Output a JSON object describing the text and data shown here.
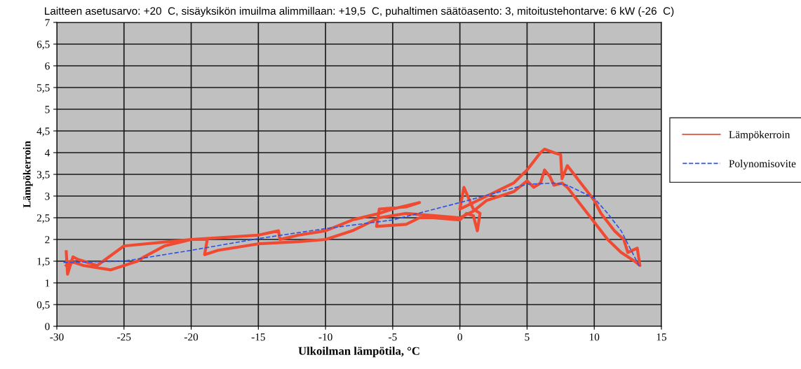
{
  "chart_data": {
    "type": "line",
    "title": "Laitteen asetusarvo: +20  C, sisäyksikön imuilma alimmillaan: +19,5  C, puhaltimen säätöasento: 3, mitoitustehontarve: 6 kW (-26  C)",
    "xlabel": "Ulkoilman lämpötila, °C",
    "ylabel": "Lämpökerroin",
    "xlim": [
      -30,
      15
    ],
    "xticks": [
      -30,
      -25,
      -20,
      -15,
      -10,
      -5,
      0,
      5,
      10,
      15
    ],
    "ylim": [
      0,
      7
    ],
    "yticks": [
      0,
      {
        "value": 0.5,
        "label": "0,5"
      },
      1,
      {
        "value": 1.5,
        "label": "1,5"
      },
      2,
      {
        "value": 2.5,
        "label": "2,5"
      },
      3,
      {
        "value": 3.5,
        "label": "3,5"
      },
      4,
      {
        "value": 4.5,
        "label": "4,5"
      },
      5,
      {
        "value": 5.5,
        "label": "5,5"
      },
      6,
      {
        "value": 6.5,
        "label": "6,5"
      },
      7
    ],
    "grid": true,
    "legend": "right",
    "series": [
      {
        "name": "Lämpökerroin",
        "color": "#f04a32",
        "line_style": "solid",
        "x": [
          -29.3,
          -29.2,
          -28.8,
          -28.5,
          -27,
          -25,
          -20,
          -15,
          -13.5,
          -13.4,
          -12,
          -10,
          -8,
          -6,
          -5,
          -3,
          -4,
          -6,
          -6.2,
          -4,
          -3,
          -2,
          0,
          0.5,
          1,
          1.3,
          1.5,
          1,
          0.3,
          0,
          1,
          2,
          4,
          5,
          6,
          6.3,
          7,
          7.5,
          7.6,
          8,
          9,
          10,
          10.5,
          11.5,
          12.2,
          12.5,
          13.2,
          13.4,
          13,
          12,
          11,
          10,
          9,
          8,
          7.6,
          7,
          6.7,
          6.3,
          6,
          5.5,
          5,
          4,
          2,
          1,
          0,
          -2,
          -4,
          -6,
          -8,
          -10,
          -12,
          -15,
          -18,
          -19,
          -18.8,
          -20,
          -22,
          -23.5,
          -24,
          -26,
          -28,
          -29,
          -29.3
        ],
        "values": [
          1.72,
          1.2,
          1.6,
          1.55,
          1.4,
          1.85,
          2.0,
          2.1,
          2.2,
          2.0,
          2.1,
          2.2,
          2.45,
          2.6,
          2.7,
          2.85,
          2.75,
          2.7,
          2.3,
          2.35,
          2.5,
          2.5,
          2.45,
          2.6,
          2.55,
          2.2,
          2.6,
          2.7,
          3.2,
          2.7,
          2.85,
          3.0,
          3.3,
          3.6,
          4.0,
          4.08,
          4.0,
          3.95,
          3.4,
          3.7,
          3.3,
          2.9,
          2.6,
          2.2,
          2.0,
          1.7,
          1.8,
          1.4,
          1.5,
          1.7,
          2.0,
          2.4,
          2.8,
          3.2,
          3.3,
          3.25,
          3.45,
          3.6,
          3.3,
          3.2,
          3.35,
          3.1,
          2.9,
          2.65,
          2.5,
          2.55,
          2.6,
          2.5,
          2.2,
          2.0,
          1.95,
          1.9,
          1.75,
          1.65,
          2.0,
          2.0,
          1.85,
          1.6,
          1.5,
          1.3,
          1.4,
          1.5,
          1.4
        ]
      },
      {
        "name": "Polynomisovite",
        "color": "#2e54e6",
        "line_style": "dashed",
        "x": [
          -29.5,
          -25,
          -20,
          -15,
          -10,
          -5,
          0,
          3,
          5,
          7,
          8,
          10,
          11,
          12,
          13,
          13.4
        ],
        "values": [
          1.47,
          1.5,
          1.75,
          2.02,
          2.25,
          2.45,
          2.85,
          3.1,
          3.27,
          3.3,
          3.25,
          2.95,
          2.6,
          2.2,
          1.6,
          1.35
        ]
      }
    ]
  }
}
